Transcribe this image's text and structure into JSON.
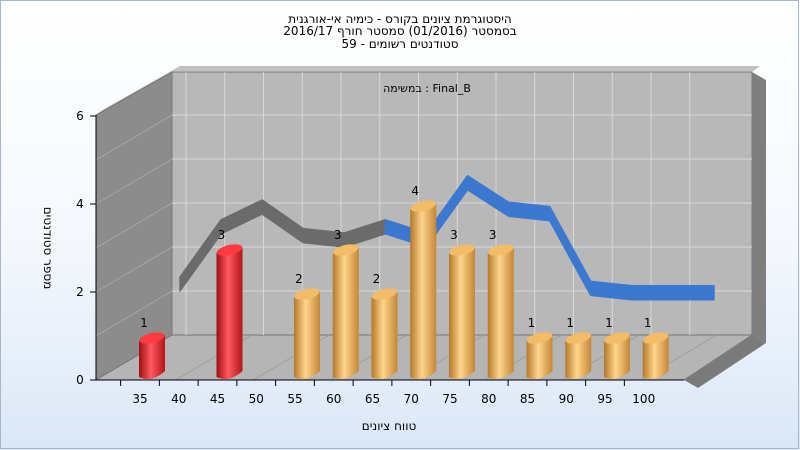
{
  "title_lines": [
    "היסטוגרמת ציונים בקורס - כימיה אי-אורגנית",
    "בסמסטר  (01/2016)  סמסטר חורף 2016/17",
    "סטודנטים רשומים - 59"
  ],
  "chart_data": {
    "type": "bar",
    "title": "היסטוגרמת ציונים בקורס - כימיה אי-אורגנית",
    "subtitle": "בסמסטר  (01/2016)  סמסטר חורף 2016/17 / סטודנטים רשומים - 59",
    "annotation": "במשימה : Final_B",
    "xlabel": "טווח ציונים",
    "ylabel": "מספר סטודנטים",
    "ylim": [
      0,
      6
    ],
    "yticks": [
      "0",
      "2",
      "4",
      "6"
    ],
    "x_ticks": [
      "35",
      "40",
      "45",
      "50",
      "55",
      "60",
      "65",
      "70",
      "75",
      "80",
      "85",
      "90",
      "95",
      "100"
    ],
    "bars": [
      {
        "x": 35,
        "value": 1,
        "color": "red"
      },
      {
        "x": 45,
        "value": 3,
        "color": "red"
      },
      {
        "x": 55,
        "value": 2,
        "color": "orange"
      },
      {
        "x": 60,
        "value": 3,
        "color": "orange"
      },
      {
        "x": 65,
        "value": 2,
        "color": "orange"
      },
      {
        "x": 70,
        "value": 4,
        "color": "orange"
      },
      {
        "x": 75,
        "value": 3,
        "color": "orange"
      },
      {
        "x": 80,
        "value": 3,
        "color": "orange"
      },
      {
        "x": 85,
        "value": 1,
        "color": "orange"
      },
      {
        "x": 90,
        "value": 1,
        "color": "orange"
      },
      {
        "x": 95,
        "value": 1,
        "color": "orange"
      },
      {
        "x": 100,
        "value": 1,
        "color": "orange"
      }
    ],
    "ribbon_points": [
      {
        "x": 40,
        "y": 1.5
      },
      {
        "x": 45,
        "y": 2.8
      },
      {
        "x": 50,
        "y": 3.25
      },
      {
        "x": 55,
        "y": 2.6
      },
      {
        "x": 60,
        "y": 2.5
      },
      {
        "x": 65,
        "y": 2.8
      },
      {
        "x": 70,
        "y": 2.5
      },
      {
        "x": 75,
        "y": 3.8
      },
      {
        "x": 80,
        "y": 3.2
      },
      {
        "x": 85,
        "y": 3.1
      },
      {
        "x": 90,
        "y": 1.4
      },
      {
        "x": 95,
        "y": 1.3
      },
      {
        "x": 100,
        "y": 1.3
      },
      {
        "x": 105,
        "y": 1.3
      }
    ],
    "grid": true,
    "colors": {
      "red": "#e8242b",
      "orange": "#e9a745",
      "ribbon_gray": "#6b6b6b",
      "ribbon_blue": "#3c78d0",
      "back_wall": "#b8b8b8",
      "side_wall": "#8c8c8c",
      "floor": "#b5b5b5"
    }
  }
}
